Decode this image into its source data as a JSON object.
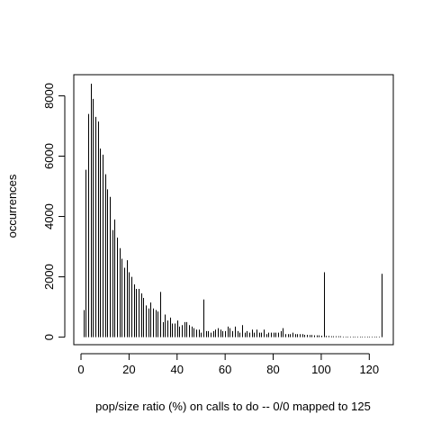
{
  "chart_data": {
    "type": "bar",
    "style": "vertical lines (histogram spikes)",
    "xlabel": "pop/size ratio (%) on calls to do -- 0/0 mapped to 125",
    "ylabel": "occurrences",
    "xlim": [
      -3,
      130
    ],
    "ylim": [
      -250,
      8700
    ],
    "xticks": [
      0,
      20,
      40,
      60,
      80,
      100,
      120
    ],
    "yticks": [
      0,
      2000,
      4000,
      6000,
      8000
    ],
    "grid": false,
    "box": true,
    "x": [
      1,
      2,
      3,
      4,
      5,
      6,
      7,
      8,
      9,
      10,
      11,
      12,
      13,
      14,
      15,
      16,
      17,
      18,
      19,
      20,
      21,
      22,
      23,
      24,
      25,
      26,
      27,
      28,
      29,
      30,
      31,
      32,
      33,
      34,
      35,
      36,
      37,
      38,
      39,
      40,
      41,
      42,
      43,
      44,
      45,
      46,
      47,
      48,
      49,
      50,
      51,
      52,
      53,
      54,
      55,
      56,
      57,
      58,
      59,
      60,
      61,
      62,
      63,
      64,
      65,
      66,
      67,
      68,
      69,
      70,
      71,
      72,
      73,
      74,
      75,
      76,
      77,
      78,
      79,
      80,
      81,
      82,
      83,
      84,
      85,
      86,
      87,
      88,
      89,
      90,
      91,
      92,
      93,
      94,
      95,
      96,
      97,
      98,
      99,
      100,
      101,
      102,
      103,
      104,
      105,
      106,
      107,
      108,
      109,
      110,
      111,
      112,
      113,
      114,
      115,
      116,
      117,
      118,
      119,
      120,
      121,
      122,
      123,
      124,
      125
    ],
    "values": [
      900,
      5550,
      7400,
      8400,
      7900,
      7300,
      7150,
      6250,
      6050,
      5400,
      4900,
      4650,
      3550,
      3900,
      3300,
      2950,
      2600,
      2300,
      2550,
      2150,
      2000,
      1750,
      1600,
      1600,
      1450,
      1300,
      1050,
      950,
      1150,
      950,
      900,
      850,
      1500,
      500,
      750,
      550,
      650,
      450,
      450,
      550,
      350,
      400,
      500,
      500,
      400,
      350,
      300,
      250,
      250,
      150,
      1250,
      200,
      200,
      150,
      200,
      250,
      300,
      250,
      200,
      200,
      350,
      300,
      200,
      350,
      200,
      150,
      400,
      150,
      200,
      150,
      250,
      150,
      250,
      150,
      150,
      250,
      100,
      150,
      150,
      150,
      150,
      150,
      200,
      300,
      100,
      100,
      100,
      150,
      100,
      100,
      100,
      100,
      80,
      80,
      70,
      70,
      60,
      60,
      60,
      50,
      2150,
      40,
      40,
      30,
      30,
      30,
      30,
      30,
      20,
      20,
      20,
      20,
      20,
      20,
      20,
      20,
      20,
      20,
      20,
      20,
      20,
      20,
      20,
      20,
      2100
    ]
  }
}
